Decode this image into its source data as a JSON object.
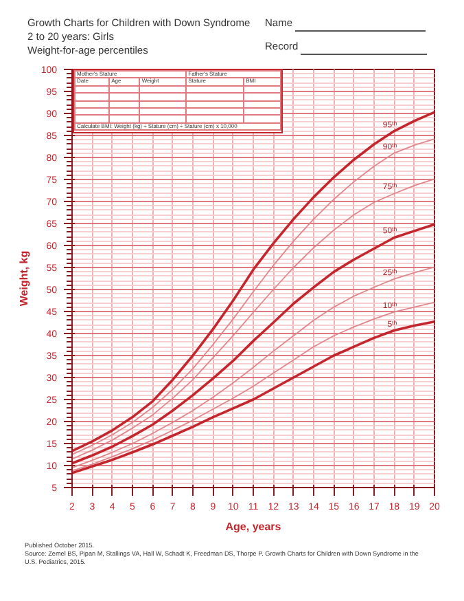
{
  "chart_data": {
    "type": "line",
    "title": "Growth Charts for Children with Down Syndrome",
    "subtitle": "2 to 20 years: Girls\nWeight-for-age percentiles",
    "xlabel": "Age, years",
    "ylabel": "Weight, kg",
    "x": [
      2,
      3,
      4,
      5,
      6,
      7,
      8,
      9,
      10,
      11,
      12,
      13,
      14,
      15,
      16,
      17,
      18,
      19,
      20
    ],
    "xlim": [
      2,
      20
    ],
    "xticks": [
      2,
      3,
      4,
      5,
      6,
      7,
      8,
      9,
      10,
      11,
      12,
      13,
      14,
      15,
      16,
      17,
      18,
      19,
      20
    ],
    "ylim": [
      5,
      100
    ],
    "yticks": [
      5,
      10,
      15,
      20,
      25,
      30,
      35,
      40,
      45,
      50,
      55,
      60,
      65,
      70,
      75,
      80,
      85,
      90,
      95,
      100
    ],
    "grid": true,
    "legend": false,
    "marker": "none",
    "line_style": "solid",
    "series": [
      {
        "name": "95ᵗʰ",
        "color": "#c4262e",
        "values": [
          13.3,
          15.5,
          18,
          21,
          24.6,
          29.5,
          35,
          41,
          47.5,
          54.5,
          60.5,
          66,
          71,
          75.5,
          79.5,
          83,
          86,
          88.3,
          90.3
        ]
      },
      {
        "name": "90ᵗʰ",
        "color": "#e0868b",
        "values": [
          12.5,
          14.6,
          17,
          19.8,
          23.2,
          27.3,
          32,
          37.5,
          43.3,
          49.5,
          55.5,
          61,
          66,
          70.5,
          74.5,
          78,
          81,
          82.8,
          84.2
        ]
      },
      {
        "name": "75ᵗʰ",
        "color": "#e0868b",
        "values": [
          11.5,
          13.5,
          15.8,
          18.5,
          21.5,
          25.3,
          29.5,
          34.5,
          39.5,
          44.8,
          50,
          55,
          59.5,
          63.5,
          67,
          69.8,
          71.8,
          73.6,
          75.1
        ]
      },
      {
        "name": "50ᵗʰ",
        "color": "#c4262e",
        "values": [
          10.5,
          12.3,
          14.3,
          16.7,
          19.3,
          22.5,
          26,
          29.8,
          33.8,
          38.3,
          42.5,
          46.8,
          50.5,
          54,
          56.8,
          59.3,
          61.8,
          63.3,
          64.8
        ]
      },
      {
        "name": "25ᵗʰ",
        "color": "#e0868b",
        "values": [
          9.5,
          11.2,
          13,
          15,
          17.3,
          19.8,
          22.5,
          25.5,
          28.8,
          32.3,
          36,
          39.5,
          43,
          46,
          48.5,
          50.5,
          52.4,
          53.8,
          55.1
        ]
      },
      {
        "name": "10ᵗʰ",
        "color": "#e0868b",
        "values": [
          8.8,
          10.3,
          12,
          13.8,
          15.8,
          18,
          20.3,
          22.8,
          25.3,
          28,
          31,
          34,
          37,
          39.5,
          41.5,
          43.3,
          44.9,
          46,
          47.1
        ]
      },
      {
        "name": "5ᵗʰ",
        "color": "#c4262e",
        "values": [
          8.3,
          9.8,
          11.3,
          13,
          14.8,
          16.8,
          18.8,
          21,
          23,
          25,
          27.5,
          30,
          32.5,
          35,
          37,
          39,
          40.7,
          41.8,
          42.7
        ]
      }
    ],
    "annotations": [
      "Mother's Stature",
      "Father's Stature",
      "Date",
      "Age",
      "Weight",
      "Stature",
      "BMI",
      "Calculate BMI: Weight (kg) ÷ Stature (cm) ÷ Stature (cm) x 10,000",
      "Name",
      "Record",
      "Published October 2015.",
      "Source: Zemel BS, Pipan M, Stallings VA, Hall W, Schadt K, Freedman DS, Thorpe P. Growth Charts for Children with Down Syndrome in the U.S. Pediatrics, 2015."
    ]
  }
}
